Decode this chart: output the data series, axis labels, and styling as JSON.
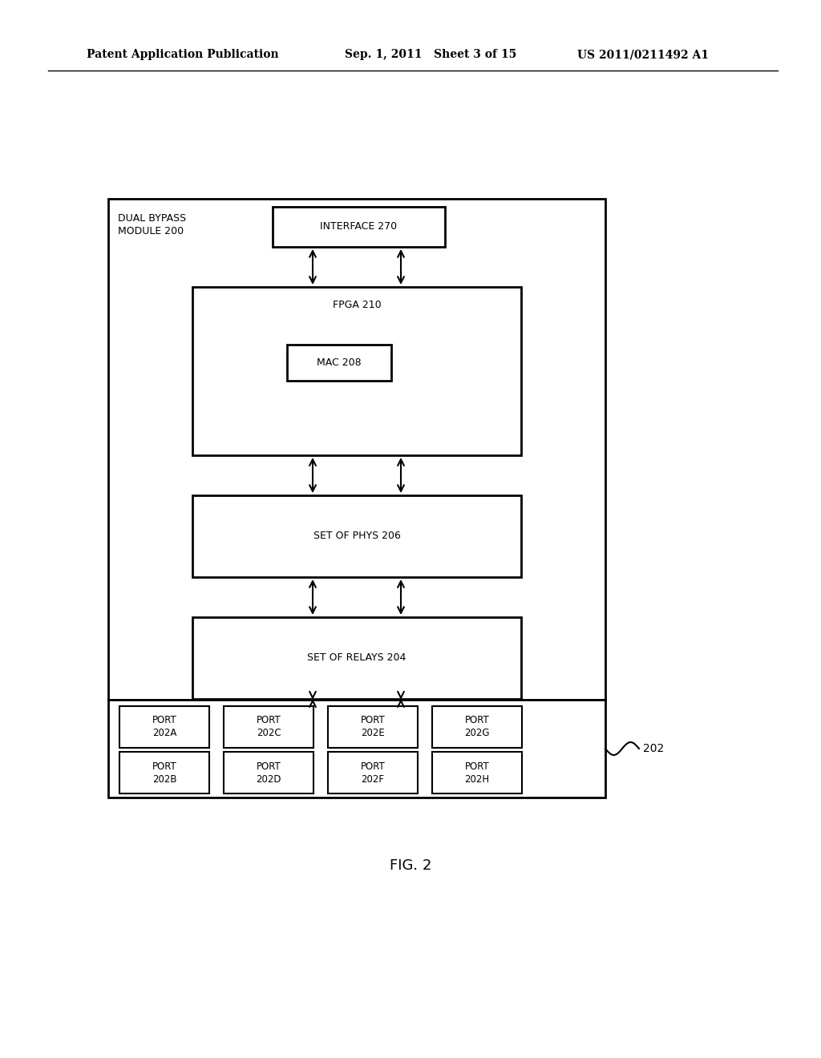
{
  "bg_color": "#ffffff",
  "header_left": "Patent Application Publication",
  "header_mid": "Sep. 1, 2011   Sheet 3 of 15",
  "header_right": "US 2011/0211492 A1",
  "fig_label": "FIG. 2",
  "outer_box_label": "DUAL BYPASS\nMODULE 200",
  "interface_label": "INTERFACE 270",
  "fpga_label": "FPGA 210",
  "mac_label": "MAC 208",
  "phys_label": "SET OF PHYS 206",
  "relays_label": "SET OF RELAYS 204",
  "ports_top": [
    "PORT\n202A",
    "PORT\n202C",
    "PORT\n202E",
    "PORT\n202G"
  ],
  "ports_bot": [
    "PORT\n202B",
    "PORT\n202D",
    "PORT\n202F",
    "PORT\n202H"
  ],
  "ports_label": "202"
}
